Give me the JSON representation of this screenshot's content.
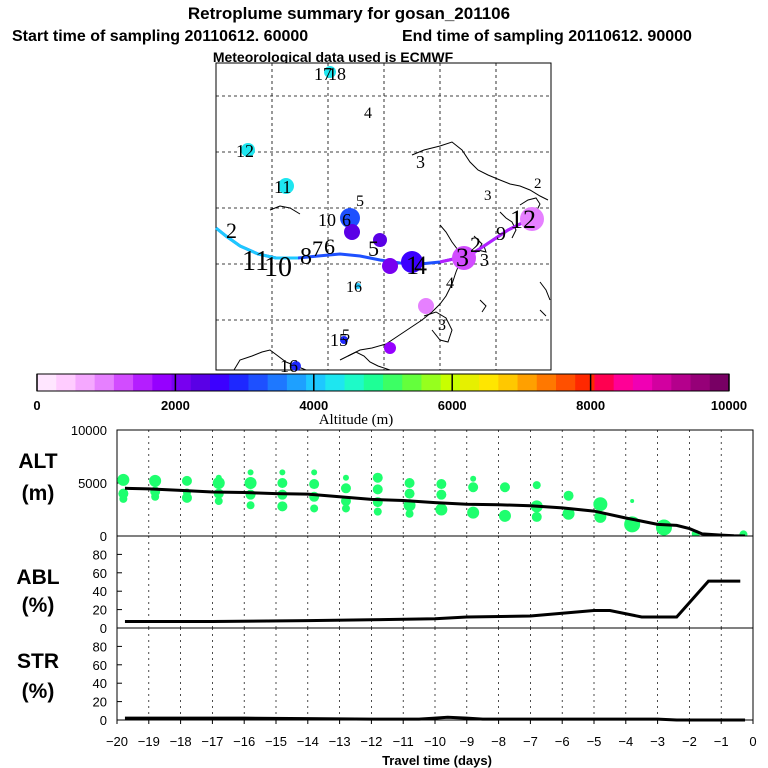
{
  "header": {
    "title": "Retroplume summary for gosan_201106",
    "start_label": "Start time of sampling 20110612. 60000",
    "end_label": "End time of sampling 20110612. 90000",
    "met_label": "Meteorological data used is ECMWF"
  },
  "map": {
    "labels": [
      {
        "t": "17",
        "c": "#1fd6d6"
      },
      {
        "t": "18",
        "c": "#1fd6d6"
      },
      {
        "t": "4",
        "c": "#1fa0a0"
      },
      {
        "t": "12",
        "c": "#1fd6d6"
      },
      {
        "t": "11",
        "c": "#1fd6d6"
      },
      {
        "t": "3",
        "c": "#000000"
      },
      {
        "t": "3",
        "c": "#6a00d6"
      },
      {
        "t": "2",
        "c": "#000000"
      },
      {
        "t": "5",
        "c": "#1fc0e0"
      },
      {
        "t": "10",
        "c": "#1f5ae6"
      },
      {
        "t": "6",
        "c": "#1f3ad6"
      },
      {
        "t": "2",
        "c": "#000000"
      },
      {
        "t": "11",
        "c": "#000000"
      },
      {
        "t": "10",
        "c": "#000000"
      },
      {
        "t": "8",
        "c": "#000000"
      },
      {
        "t": "7",
        "c": "#000000"
      },
      {
        "t": "6",
        "c": "#000000"
      },
      {
        "t": "5",
        "c": "#000000"
      },
      {
        "t": "4",
        "c": "#000000"
      },
      {
        "t": "1",
        "c": "#000000"
      },
      {
        "t": "3",
        "c": "#6a00d6"
      },
      {
        "t": "2",
        "c": "#000000"
      },
      {
        "t": "3",
        "c": "#b040d6"
      },
      {
        "t": "12",
        "c": "#c000a0"
      },
      {
        "t": "16",
        "c": "#1fa0c0"
      },
      {
        "t": "4",
        "c": "#6a00d6"
      },
      {
        "t": "3",
        "c": "#000000"
      },
      {
        "t": "15",
        "c": "#1f3ad6"
      },
      {
        "t": "5",
        "c": "#6a00d6"
      },
      {
        "t": "16",
        "c": "#1f3ad6"
      },
      {
        "t": "9",
        "c": "#000000"
      }
    ]
  },
  "colorbar": {
    "ticks": [
      "0",
      "2000",
      "4000",
      "6000",
      "8000",
      "10000"
    ],
    "label": "Altitude (m)",
    "colors": [
      "#ffe6ff",
      "#ffccff",
      "#f5a8ff",
      "#e680ff",
      "#d24cff",
      "#b41eff",
      "#9600ff",
      "#7800f0",
      "#5a00e6",
      "#3c00ff",
      "#1e28ff",
      "#1e50ff",
      "#1e78ff",
      "#1ea0ff",
      "#1ec8ff",
      "#1ee6f0",
      "#1efac8",
      "#1eff96",
      "#3cff64",
      "#64ff3c",
      "#96ff1e",
      "#c8ff00",
      "#e6f000",
      "#ffe600",
      "#ffc800",
      "#ffa000",
      "#ff7800",
      "#ff5000",
      "#ff2800",
      "#ff0050",
      "#ff0096",
      "#f000b4",
      "#d200a0",
      "#b4008c",
      "#960078",
      "#780064"
    ]
  },
  "chart_data": [
    {
      "type": "scatter",
      "panel": "ALT",
      "ylabel_line1": "ALT",
      "ylabel_line2": "(m)",
      "ylim": [
        0,
        10000
      ],
      "yticks": [
        "10000",
        "5000",
        "0"
      ],
      "line": {
        "x": [
          -19.75,
          -19,
          -18,
          -17,
          -16,
          -15,
          -14,
          -13,
          -12,
          -11,
          -10,
          -9,
          -8,
          -7,
          -6,
          -5,
          -4,
          -3,
          -2.4,
          -2,
          -1.6,
          -1,
          -0.6,
          -0.25
        ],
        "y": [
          4500,
          4450,
          4300,
          4150,
          4100,
          4000,
          3950,
          3700,
          3450,
          3350,
          3150,
          3000,
          2950,
          2850,
          2650,
          2350,
          1700,
          1100,
          1000,
          700,
          200,
          80,
          20,
          0
        ]
      },
      "points": [
        {
          "x": -19.8,
          "y": 5300,
          "r": 6
        },
        {
          "x": -19.8,
          "y": 4000,
          "r": 5
        },
        {
          "x": -19.8,
          "y": 3500,
          "r": 4
        },
        {
          "x": -18.8,
          "y": 5200,
          "r": 6
        },
        {
          "x": -18.8,
          "y": 4200,
          "r": 5
        },
        {
          "x": -18.8,
          "y": 3700,
          "r": 4
        },
        {
          "x": -17.8,
          "y": 5200,
          "r": 5
        },
        {
          "x": -17.8,
          "y": 4100,
          "r": 4
        },
        {
          "x": -17.8,
          "y": 3600,
          "r": 5
        },
        {
          "x": -16.8,
          "y": 5500,
          "r": 3
        },
        {
          "x": -16.8,
          "y": 5000,
          "r": 6
        },
        {
          "x": -16.8,
          "y": 4000,
          "r": 5
        },
        {
          "x": -16.8,
          "y": 3300,
          "r": 4
        },
        {
          "x": -15.8,
          "y": 6000,
          "r": 3
        },
        {
          "x": -15.8,
          "y": 5000,
          "r": 6
        },
        {
          "x": -15.8,
          "y": 3900,
          "r": 5
        },
        {
          "x": -15.8,
          "y": 2900,
          "r": 4
        },
        {
          "x": -14.8,
          "y": 6000,
          "r": 3
        },
        {
          "x": -14.8,
          "y": 5000,
          "r": 5
        },
        {
          "x": -14.8,
          "y": 3900,
          "r": 5
        },
        {
          "x": -14.8,
          "y": 2800,
          "r": 5
        },
        {
          "x": -13.8,
          "y": 6000,
          "r": 3
        },
        {
          "x": -13.8,
          "y": 4900,
          "r": 5
        },
        {
          "x": -13.8,
          "y": 3700,
          "r": 5
        },
        {
          "x": -13.8,
          "y": 2600,
          "r": 4
        },
        {
          "x": -12.8,
          "y": 5500,
          "r": 3
        },
        {
          "x": -12.8,
          "y": 4500,
          "r": 5
        },
        {
          "x": -12.8,
          "y": 3300,
          "r": 5
        },
        {
          "x": -12.8,
          "y": 2600,
          "r": 4
        },
        {
          "x": -11.8,
          "y": 5500,
          "r": 5
        },
        {
          "x": -11.8,
          "y": 4400,
          "r": 5
        },
        {
          "x": -11.8,
          "y": 3200,
          "r": 5
        },
        {
          "x": -11.8,
          "y": 2300,
          "r": 4
        },
        {
          "x": -10.8,
          "y": 5000,
          "r": 5
        },
        {
          "x": -10.8,
          "y": 4000,
          "r": 5
        },
        {
          "x": -10.8,
          "y": 2900,
          "r": 6
        },
        {
          "x": -10.8,
          "y": 2100,
          "r": 4
        },
        {
          "x": -9.8,
          "y": 4900,
          "r": 5
        },
        {
          "x": -9.8,
          "y": 3900,
          "r": 5
        },
        {
          "x": -9.8,
          "y": 2500,
          "r": 6
        },
        {
          "x": -8.8,
          "y": 5400,
          "r": 3
        },
        {
          "x": -8.8,
          "y": 4600,
          "r": 5
        },
        {
          "x": -8.8,
          "y": 2200,
          "r": 6
        },
        {
          "x": -7.8,
          "y": 4600,
          "r": 5
        },
        {
          "x": -7.8,
          "y": 1900,
          "r": 6
        },
        {
          "x": -6.8,
          "y": 4800,
          "r": 4
        },
        {
          "x": -6.8,
          "y": 2800,
          "r": 6
        },
        {
          "x": -6.8,
          "y": 1800,
          "r": 5
        },
        {
          "x": -5.8,
          "y": 3800,
          "r": 5
        },
        {
          "x": -5.8,
          "y": 2100,
          "r": 6
        },
        {
          "x": -4.8,
          "y": 3000,
          "r": 7
        },
        {
          "x": -4.8,
          "y": 1800,
          "r": 6
        },
        {
          "x": -3.8,
          "y": 3300,
          "r": 2
        },
        {
          "x": -3.8,
          "y": 1100,
          "r": 8
        },
        {
          "x": -2.8,
          "y": 800,
          "r": 8
        },
        {
          "x": -1.8,
          "y": 200,
          "r": 4
        },
        {
          "x": -0.3,
          "y": 150,
          "r": 4
        }
      ]
    },
    {
      "type": "line",
      "panel": "ABL",
      "ylabel_line1": "ABL",
      "ylabel_line2": "(%)",
      "ylim": [
        0,
        100
      ],
      "yticks": [
        "80",
        "60",
        "40",
        "20",
        "0"
      ],
      "x": [
        -19.75,
        -17,
        -14,
        -12,
        -10,
        -9,
        -7,
        -6,
        -5,
        -4.5,
        -3.5,
        -2.4,
        -1.4,
        -0.4
      ],
      "y": [
        7,
        7,
        8,
        9,
        10,
        12,
        13,
        16,
        19,
        19,
        12,
        12,
        51,
        51
      ]
    },
    {
      "type": "line",
      "panel": "STR",
      "ylabel_line1": "STR",
      "ylabel_line2": "(%)",
      "ylim": [
        0,
        100
      ],
      "yticks": [
        "80",
        "60",
        "40",
        "20",
        "0"
      ],
      "x": [
        -19.75,
        -16,
        -14,
        -12,
        -10.5,
        -10,
        -9.6,
        -9,
        -8.5,
        -4,
        -3,
        -2.4,
        -0.25
      ],
      "y": [
        2,
        2,
        1.5,
        1,
        1,
        2,
        3,
        2,
        1,
        1,
        1,
        0,
        0
      ],
      "xlim": [
        -20,
        0
      ],
      "xticks": [
        "−20",
        "−19",
        "−18",
        "−17",
        "−16",
        "−15",
        "−14",
        "−13",
        "−12",
        "−11",
        "−10",
        "−9",
        "−8",
        "−7",
        "−6",
        "−5",
        "−4",
        "−3",
        "−2",
        "−1",
        "0"
      ],
      "xlabel": "Travel time (days)"
    }
  ]
}
